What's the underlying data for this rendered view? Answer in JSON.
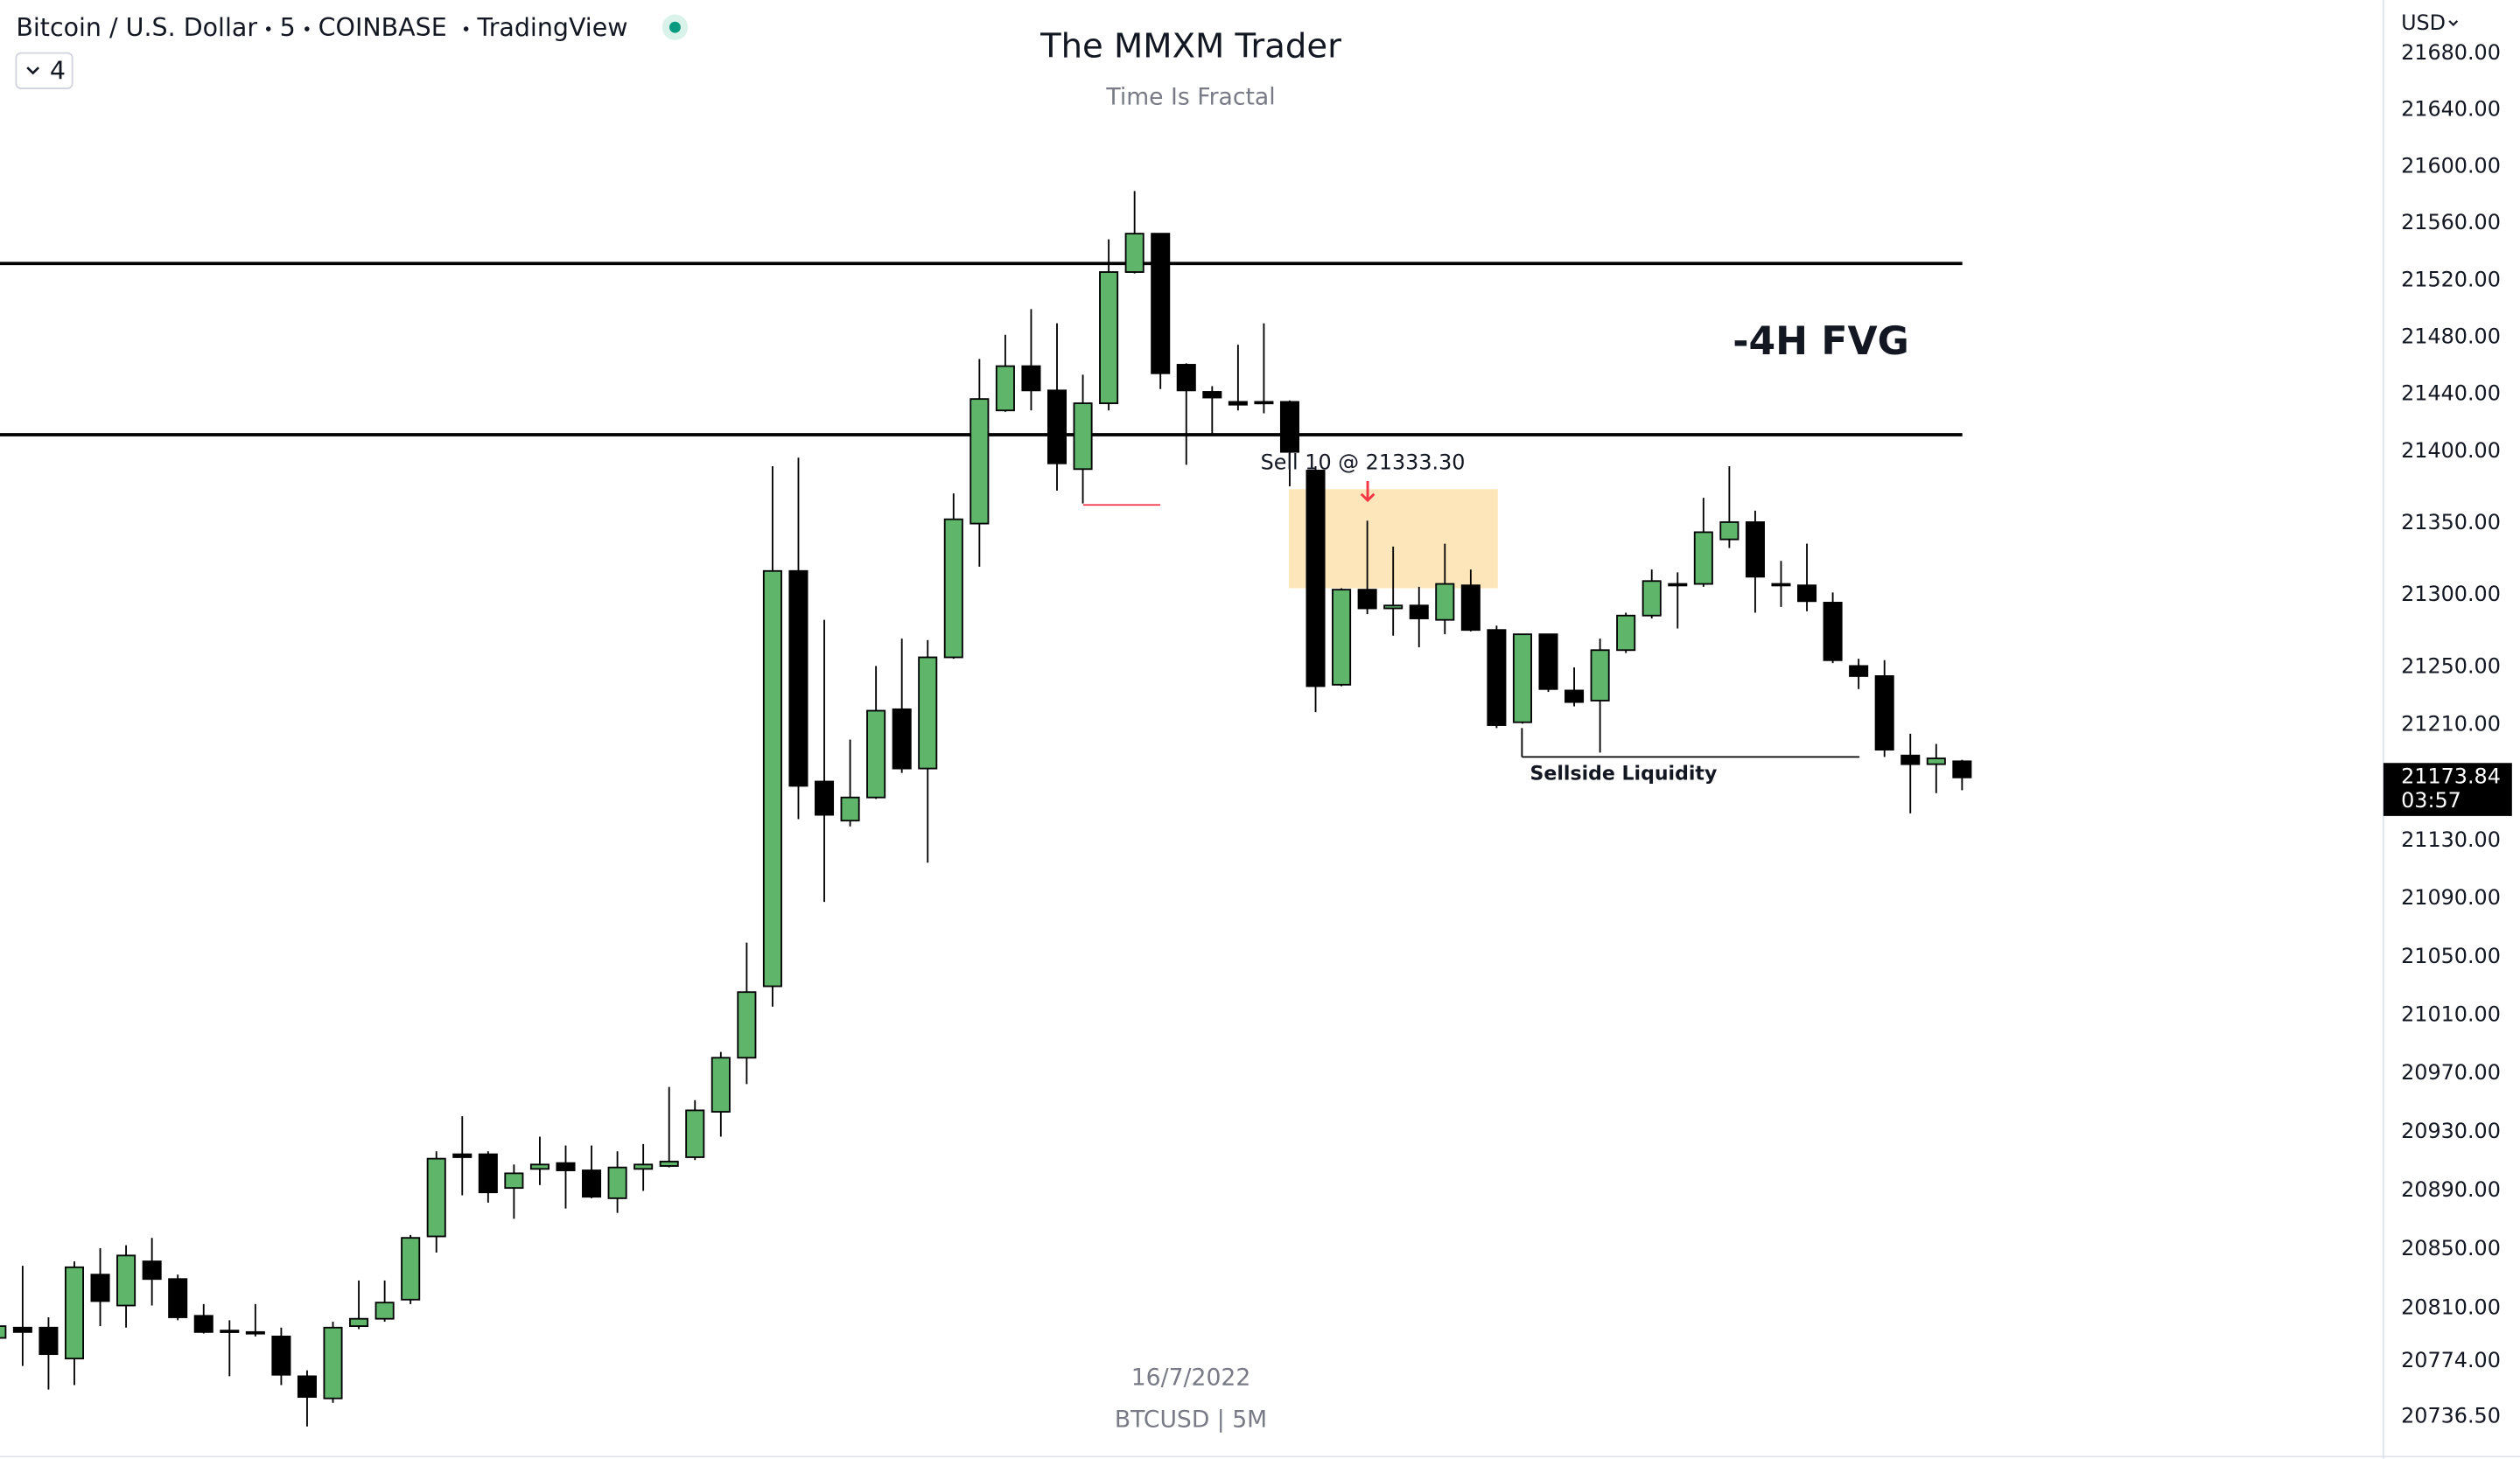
{
  "header": {
    "symbol": "Bitcoin / U.S. Dollar",
    "interval": "5",
    "exchange": "COINBASE",
    "source": "TradingView",
    "indicators": "4",
    "currency": "USD"
  },
  "watermark": {
    "date": "16/7/2022",
    "pair": "BTCUSD | 5M"
  },
  "chart_data": {
    "type": "candlestick",
    "title": "The MMXM Trader",
    "subtitle": "Time Is Fractal",
    "up_color": "#5fb56a",
    "down_color": "#000000",
    "log_scale": true,
    "grid": false,
    "ylim": [
      20708,
      21718
    ],
    "yticks": [
      {
        "value": 21680,
        "label": "21680.00"
      },
      {
        "value": 21640,
        "label": "21640.00"
      },
      {
        "value": 21600,
        "label": "21600.00"
      },
      {
        "value": 21560,
        "label": "21560.00"
      },
      {
        "value": 21520,
        "label": "21520.00"
      },
      {
        "value": 21480,
        "label": "21480.00"
      },
      {
        "value": 21440,
        "label": "21440.00"
      },
      {
        "value": 21400,
        "label": "21400.00"
      },
      {
        "value": 21350,
        "label": "21350.00"
      },
      {
        "value": 21300,
        "label": "21300.00"
      },
      {
        "value": 21250,
        "label": "21250.00"
      },
      {
        "value": 21210,
        "label": "21210.00"
      },
      {
        "value": 21130,
        "label": "21130.00"
      },
      {
        "value": 21090,
        "label": "21090.00"
      },
      {
        "value": 21050,
        "label": "21050.00"
      },
      {
        "value": 21010,
        "label": "21010.00"
      },
      {
        "value": 20970,
        "label": "20970.00"
      },
      {
        "value": 20930,
        "label": "20930.00"
      },
      {
        "value": 20890,
        "label": "20890.00"
      },
      {
        "value": 20850,
        "label": "20850.00"
      },
      {
        "value": 20810,
        "label": "20810.00"
      },
      {
        "value": 20774,
        "label": "20774.00"
      },
      {
        "value": 20736.5,
        "label": "20736.50"
      }
    ],
    "open": [
      20790,
      20797,
      20797,
      20776,
      20833,
      20812,
      20842,
      20830,
      20805,
      20795,
      20794,
      20791,
      20764,
      20749,
      20798,
      20803,
      20816,
      20859,
      20915,
      20915,
      20892,
      20905,
      20909,
      20904,
      20885,
      20905,
      20907,
      20913,
      20944,
      20981,
      21030,
      21317,
      21171,
      21144,
      21160,
      21221,
      21180,
      21257,
      21350,
      21429,
      21460,
      21443,
      21388,
      21434,
      21526,
      21553,
      21461,
      21442,
      21435,
      21435,
      21435,
      21387,
      21238,
      21304,
      21291,
      21293,
      21283,
      21307,
      21276,
      21212,
      21273,
      21234,
      21227,
      21262,
      21286,
      21307,
      21308,
      21339,
      21351,
      21308,
      21307,
      21295,
      21251,
      21244,
      21189,
      21183,
      21185
    ],
    "high": [
      20804,
      20839,
      20804,
      20842,
      20851,
      20853,
      20858,
      20833,
      20813,
      20802,
      20813,
      20797,
      20768,
      20801,
      20829,
      20829,
      20860,
      20917,
      20941,
      20917,
      20908,
      20927,
      20921,
      20921,
      20917,
      20922,
      20961,
      20952,
      20985,
      21060,
      21390,
      21396,
      21283,
      21200,
      21251,
      21270,
      21269,
      21371,
      21465,
      21482,
      21500,
      21490,
      21454,
      21549,
      21583,
      21553,
      21462,
      21446,
      21475,
      21490,
      21436,
      21390,
      21305,
      21352,
      21334,
      21306,
      21336,
      21318,
      21279,
      21273,
      21273,
      21250,
      21270,
      21288,
      21318,
      21316,
      21368,
      21390,
      21359,
      21324,
      21336,
      21302,
      21256,
      21255,
      21204,
      21197,
      21186
    ],
    "low": [
      20782,
      20771,
      20755,
      20758,
      20798,
      20797,
      20812,
      20802,
      20793,
      20764,
      20791,
      20758,
      20730,
      20746,
      20796,
      20801,
      20813,
      20848,
      20887,
      20882,
      20871,
      20894,
      20878,
      20885,
      20875,
      20890,
      20906,
      20911,
      20927,
      20963,
      21016,
      21145,
      21088,
      21140,
      21159,
      21177,
      21115,
      21256,
      21320,
      21428,
      21429,
      21373,
      21364,
      21429,
      21525,
      21444,
      21391,
      21412,
      21429,
      21427,
      21376,
      21219,
      21237,
      21287,
      21272,
      21264,
      21273,
      21275,
      21208,
      21211,
      21233,
      21223,
      21191,
      21260,
      21284,
      21277,
      21306,
      21333,
      21288,
      21292,
      21289,
      21253,
      21235,
      21188,
      21149,
      21163,
      21165
    ],
    "close": [
      20798,
      20794,
      20779,
      20838,
      20815,
      20846,
      20830,
      20804,
      20794,
      20794,
      20793,
      20765,
      20750,
      20797,
      20803,
      20814,
      20858,
      20912,
      20913,
      20889,
      20902,
      20908,
      20904,
      20886,
      20906,
      20908,
      20910,
      20945,
      20981,
      21026,
      21317,
      21168,
      21148,
      21160,
      21220,
      21180,
      21257,
      21353,
      21437,
      21460,
      21443,
      21392,
      21434,
      21526,
      21553,
      21455,
      21443,
      21438,
      21433,
      21434,
      21400,
      21237,
      21304,
      21291,
      21293,
      21284,
      21308,
      21276,
      21210,
      21273,
      21235,
      21226,
      21262,
      21286,
      21310,
      21308,
      21344,
      21351,
      21313,
      21307,
      21296,
      21255,
      21244,
      21193,
      21183,
      21187,
      21173.84
    ],
    "last_price": 21173.84,
    "countdown": "03:57",
    "fvg": {
      "label": "-4H FVG",
      "levels": [
        21532,
        21412
      ]
    },
    "order": {
      "label": "Sell 10 @ 21333.30",
      "zone": [
        21374,
        21305
      ]
    },
    "wick_level": 21363,
    "liquidity": {
      "label": "Sellside Liquidity",
      "level": 21188
    }
  }
}
